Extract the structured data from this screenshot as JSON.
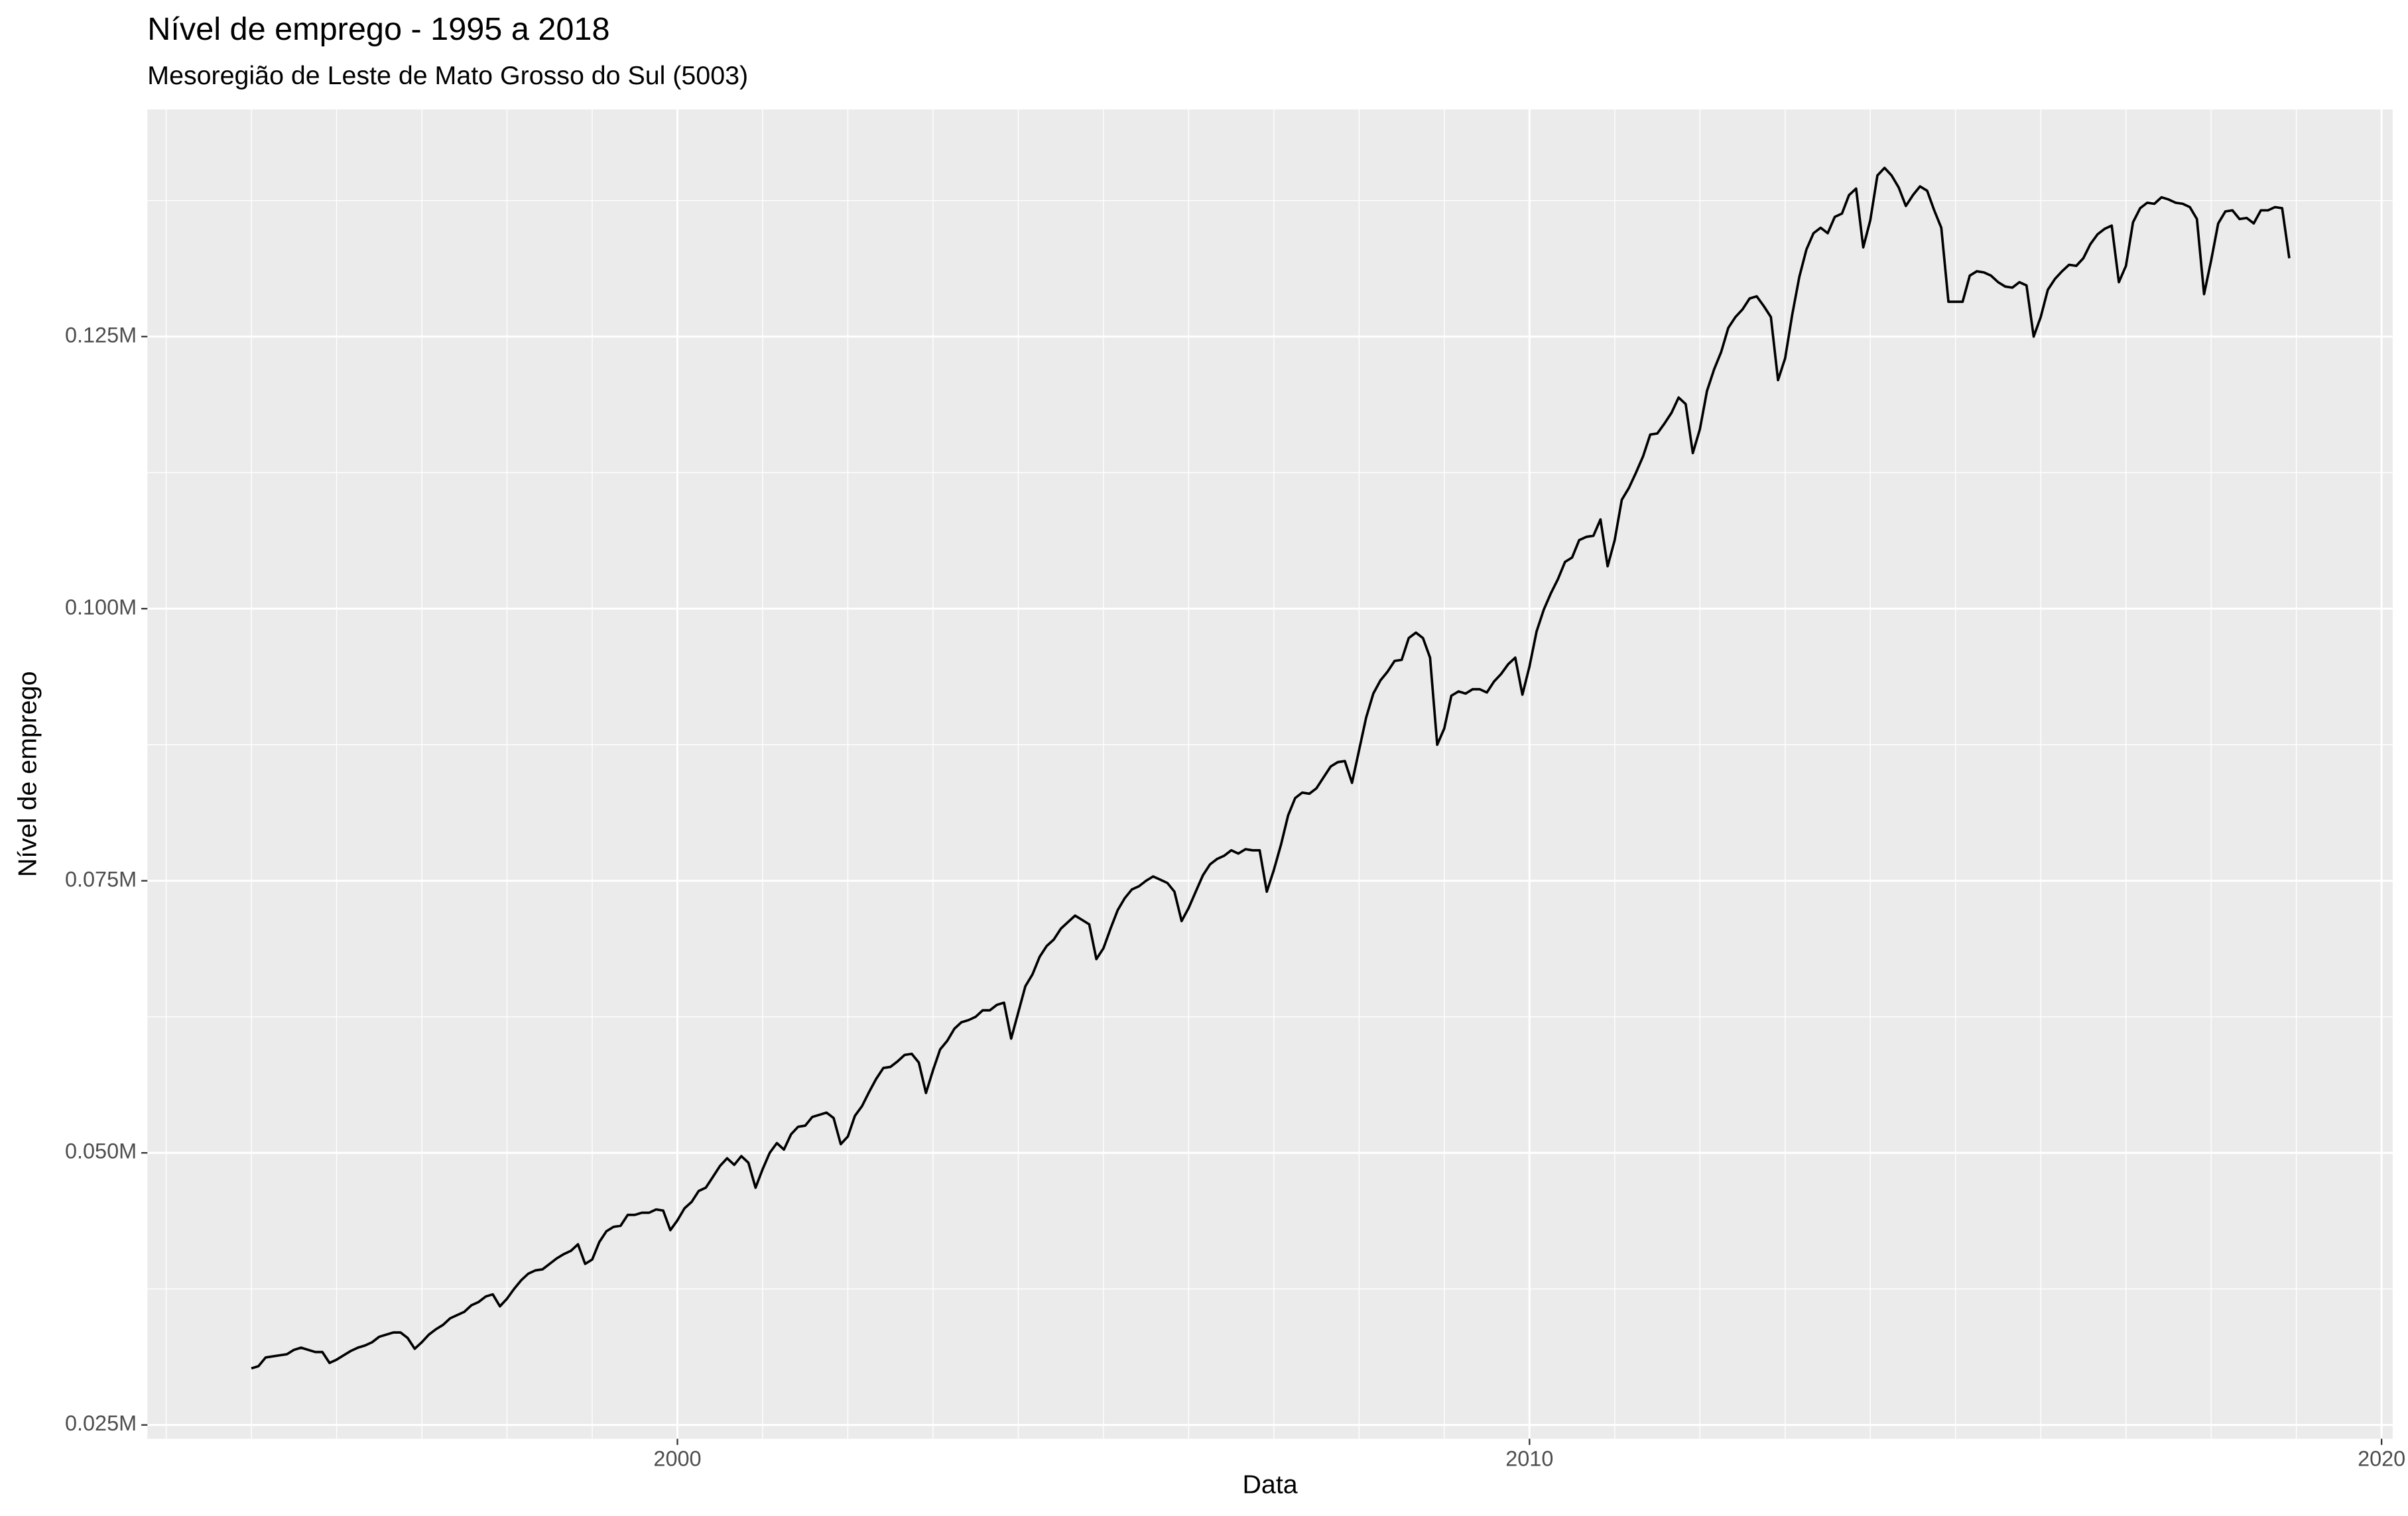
{
  "chart_data": {
    "type": "line",
    "title": "Nível de emprego - 1995 a 2018",
    "subtitle": "Mesoregião de Leste de Mato Grosso do Sul (5003)",
    "x_label": "Data",
    "y_label": "Nível de emprego",
    "x": [
      1995,
      1995.083,
      1995.167,
      1995.25,
      1995.333,
      1995.417,
      1995.5,
      1995.583,
      1995.667,
      1995.75,
      1995.833,
      1995.917,
      1996,
      1996.083,
      1996.167,
      1996.25,
      1996.333,
      1996.417,
      1996.5,
      1996.583,
      1996.667,
      1996.75,
      1996.833,
      1996.917,
      1997,
      1997.083,
      1997.167,
      1997.25,
      1997.333,
      1997.417,
      1997.5,
      1997.583,
      1997.667,
      1997.75,
      1997.833,
      1997.917,
      1998,
      1998.083,
      1998.167,
      1998.25,
      1998.333,
      1998.417,
      1998.5,
      1998.583,
      1998.667,
      1998.75,
      1998.833,
      1998.917,
      1999,
      1999.083,
      1999.167,
      1999.25,
      1999.333,
      1999.417,
      1999.5,
      1999.583,
      1999.667,
      1999.75,
      1999.833,
      1999.917,
      2000,
      2000.083,
      2000.167,
      2000.25,
      2000.333,
      2000.417,
      2000.5,
      2000.583,
      2000.667,
      2000.75,
      2000.833,
      2000.917,
      2001,
      2001.083,
      2001.167,
      2001.25,
      2001.333,
      2001.417,
      2001.5,
      2001.583,
      2001.667,
      2001.75,
      2001.833,
      2001.917,
      2002,
      2002.083,
      2002.167,
      2002.25,
      2002.333,
      2002.417,
      2002.5,
      2002.583,
      2002.667,
      2002.75,
      2002.833,
      2002.917,
      2003,
      2003.083,
      2003.167,
      2003.25,
      2003.333,
      2003.417,
      2003.5,
      2003.583,
      2003.667,
      2003.75,
      2003.833,
      2003.917,
      2004,
      2004.083,
      2004.167,
      2004.25,
      2004.333,
      2004.417,
      2004.5,
      2004.583,
      2004.667,
      2004.75,
      2004.833,
      2004.917,
      2005,
      2005.083,
      2005.167,
      2005.25,
      2005.333,
      2005.417,
      2005.5,
      2005.583,
      2005.667,
      2005.75,
      2005.833,
      2005.917,
      2006,
      2006.083,
      2006.167,
      2006.25,
      2006.333,
      2006.417,
      2006.5,
      2006.583,
      2006.667,
      2006.75,
      2006.833,
      2006.917,
      2007,
      2007.083,
      2007.167,
      2007.25,
      2007.333,
      2007.417,
      2007.5,
      2007.583,
      2007.667,
      2007.75,
      2007.833,
      2007.917,
      2008,
      2008.083,
      2008.167,
      2008.25,
      2008.333,
      2008.417,
      2008.5,
      2008.583,
      2008.667,
      2008.75,
      2008.833,
      2008.917,
      2009,
      2009.083,
      2009.167,
      2009.25,
      2009.333,
      2009.417,
      2009.5,
      2009.583,
      2009.667,
      2009.75,
      2009.833,
      2009.917,
      2010,
      2010.083,
      2010.167,
      2010.25,
      2010.333,
      2010.417,
      2010.5,
      2010.583,
      2010.667,
      2010.75,
      2010.833,
      2010.917,
      2011,
      2011.083,
      2011.167,
      2011.25,
      2011.333,
      2011.417,
      2011.5,
      2011.583,
      2011.667,
      2011.75,
      2011.833,
      2011.917,
      2012,
      2012.083,
      2012.167,
      2012.25,
      2012.333,
      2012.417,
      2012.5,
      2012.583,
      2012.667,
      2012.75,
      2012.833,
      2012.917,
      2013,
      2013.083,
      2013.167,
      2013.25,
      2013.333,
      2013.417,
      2013.5,
      2013.583,
      2013.667,
      2013.75,
      2013.833,
      2013.917,
      2014,
      2014.083,
      2014.167,
      2014.25,
      2014.333,
      2014.417,
      2014.5,
      2014.583,
      2014.667,
      2014.75,
      2014.833,
      2014.917,
      2015,
      2015.083,
      2015.167,
      2015.25,
      2015.333,
      2015.417,
      2015.5,
      2015.583,
      2015.667,
      2015.75,
      2015.833,
      2015.917,
      2016,
      2016.083,
      2016.167,
      2016.25,
      2016.333,
      2016.417,
      2016.5,
      2016.583,
      2016.667,
      2016.75,
      2016.833,
      2016.917,
      2017,
      2017.083,
      2017.167,
      2017.25,
      2017.333,
      2017.417,
      2017.5,
      2017.583,
      2017.667,
      2017.75,
      2017.833,
      2017.917,
      2018,
      2018.083,
      2018.167,
      2018.25,
      2018.333,
      2018.417,
      2018.5,
      2018.583,
      2018.667,
      2018.75,
      2018.833,
      2018.917
    ],
    "values": [
      30200,
      30400,
      31200,
      31300,
      31400,
      31500,
      31900,
      32100,
      31900,
      31700,
      31700,
      30700,
      31000,
      31400,
      31800,
      32100,
      32300,
      32600,
      33100,
      33300,
      33500,
      33500,
      33000,
      32000,
      32600,
      33300,
      33800,
      34200,
      34800,
      35100,
      35400,
      36000,
      36300,
      36800,
      37000,
      35900,
      36600,
      37500,
      38300,
      38900,
      39200,
      39300,
      39800,
      40300,
      40700,
      41000,
      41600,
      39800,
      40200,
      41800,
      42800,
      43200,
      43300,
      44300,
      44300,
      44500,
      44500,
      44800,
      44700,
      42900,
      43800,
      44900,
      45500,
      46500,
      46800,
      47800,
      48800,
      49500,
      48900,
      49700,
      49100,
      46800,
      48500,
      50000,
      50900,
      50300,
      51700,
      52400,
      52500,
      53300,
      53500,
      53700,
      53200,
      50800,
      51500,
      53400,
      54300,
      55600,
      56800,
      57800,
      57900,
      58400,
      59000,
      59100,
      58300,
      55500,
      57600,
      59500,
      60300,
      61400,
      62000,
      62200,
      62500,
      63100,
      63100,
      63600,
      63800,
      60500,
      62900,
      65300,
      66400,
      68000,
      69000,
      69600,
      70600,
      71200,
      71800,
      71400,
      71000,
      67800,
      68800,
      70600,
      72300,
      73400,
      74200,
      74500,
      75000,
      75400,
      75100,
      74800,
      74000,
      71300,
      72500,
      74000,
      75500,
      76500,
      77000,
      77300,
      77800,
      77500,
      77900,
      77800,
      77800,
      74000,
      76000,
      78300,
      81000,
      82600,
      83100,
      83000,
      83500,
      84500,
      85500,
      85900,
      86000,
      84000,
      87000,
      90000,
      92200,
      93400,
      94200,
      95200,
      95300,
      97300,
      97800,
      97300,
      95500,
      87500,
      89000,
      92000,
      92400,
      92200,
      92600,
      92600,
      92300,
      93300,
      94000,
      94900,
      95500,
      92100,
      94700,
      97900,
      99900,
      101400,
      102700,
      104300,
      104700,
      106300,
      106600,
      106700,
      108200,
      103900,
      106300,
      110000,
      111100,
      112500,
      114000,
      116000,
      116100,
      117000,
      118000,
      119400,
      118800,
      114300,
      116500,
      120000,
      122000,
      123600,
      125800,
      126800,
      127500,
      128500,
      128700,
      127800,
      126800,
      121000,
      123000,
      127000,
      130500,
      133000,
      134500,
      135000,
      134500,
      136000,
      136300,
      138000,
      138600,
      133200,
      135700,
      139800,
      140500,
      139800,
      138700,
      137000,
      138000,
      138800,
      138400,
      136600,
      135000,
      128200,
      128200,
      128200,
      130600,
      131000,
      130900,
      130600,
      130000,
      129600,
      129500,
      130000,
      129700,
      125000,
      126800,
      129300,
      130300,
      131000,
      131600,
      131500,
      132200,
      133500,
      134400,
      134900,
      135200,
      130000,
      131500,
      135500,
      136800,
      137300,
      137200,
      137800,
      137600,
      137300,
      137200,
      136900,
      135800,
      128900,
      132000,
      135400,
      136500,
      136600,
      135800,
      135900,
      135400,
      136600,
      136600,
      136900,
      136800,
      132200
    ],
    "color": "#000000",
    "xlim": [
      1993.78,
      2020.13
    ],
    "xticks": [
      2000,
      2010,
      2020
    ],
    "xminor": [
      1994,
      1995,
      1996,
      1997,
      1998,
      1999,
      2001,
      2002,
      2003,
      2004,
      2005,
      2006,
      2007,
      2008,
      2009,
      2011,
      2012,
      2013,
      2014,
      2015,
      2016,
      2017,
      2018,
      2019
    ],
    "ylim": [
      23730,
      145870
    ],
    "yticks": [
      {
        "value": 25000,
        "label": "0.025M"
      },
      {
        "value": 50000,
        "label": "0.050M"
      },
      {
        "value": 75000,
        "label": "0.075M"
      },
      {
        "value": 100000,
        "label": "0.100M"
      },
      {
        "value": 125000,
        "label": "0.125M"
      }
    ],
    "yminor": [
      37500,
      62500,
      87500,
      112500,
      137500
    ],
    "grid": true
  }
}
